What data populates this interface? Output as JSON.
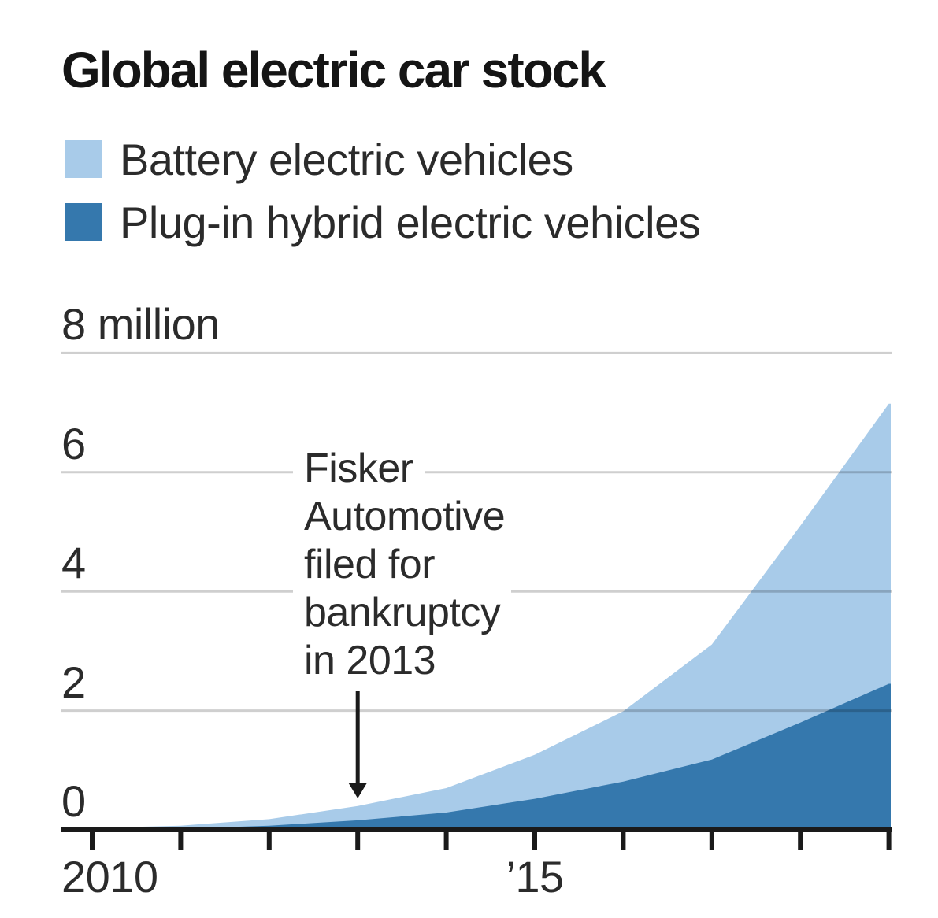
{
  "title": "Global electric car stock",
  "legend": {
    "items": [
      {
        "label": "Battery electric vehicles",
        "color": "#a8cbe9"
      },
      {
        "label": "Plug-in hybrid electric vehicles",
        "color": "#3578ad"
      }
    ]
  },
  "axis": {
    "y_unit_label": "8 million",
    "y_labels": [
      "6",
      "4",
      "2",
      "0"
    ],
    "x_labels": [
      "2010",
      "’15"
    ]
  },
  "annotation": {
    "lines": [
      "Fisker",
      "Automotive",
      "filed for",
      "bankruptcy",
      "in 2013"
    ],
    "target_year": 2013,
    "arrow_color": "#1a1a1a"
  },
  "chart_data": {
    "type": "area",
    "stacked": true,
    "title": "Global electric car stock",
    "x": [
      2010,
      2011,
      2012,
      2013,
      2014,
      2015,
      2016,
      2017,
      2018,
      2019
    ],
    "series": [
      {
        "name": "Battery electric vehicles",
        "color": "#a8cbe9",
        "values": [
          0.02,
          0.05,
          0.11,
          0.24,
          0.41,
          0.74,
          1.18,
          1.93,
          3.3,
          4.7
        ]
      },
      {
        "name": "Plug-in hybrid electric vehicles",
        "color": "#3578ad",
        "values": [
          0.01,
          0.02,
          0.07,
          0.16,
          0.29,
          0.52,
          0.81,
          1.18,
          1.8,
          2.45
        ]
      }
    ],
    "stack_bottom": "Plug-in hybrid electric vehicles",
    "ylabel": "million vehicles",
    "ylim": [
      0,
      8
    ],
    "yticks": [
      0,
      2,
      4,
      6,
      8
    ],
    "gridlines": true,
    "grid_color": "rgba(0,0,0,0.19)",
    "axis_color": "#1a1a1a",
    "legend_position": "top-left"
  }
}
